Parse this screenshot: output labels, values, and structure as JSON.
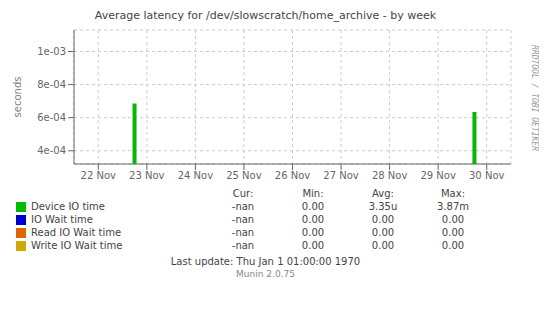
{
  "chart_data": {
    "type": "bar",
    "title": "Average latency for /dev/slowscratch/home_archive - by week",
    "ylabel": "seconds",
    "categories": [
      "22 Nov",
      "23 Nov",
      "24 Nov",
      "25 Nov",
      "26 Nov",
      "27 Nov",
      "28 Nov",
      "29 Nov",
      "30 Nov"
    ],
    "series": [
      {
        "name": "Device IO time",
        "color": "#00bb00",
        "values": [
          null,
          0.000685,
          null,
          null,
          null,
          null,
          null,
          null,
          0.000635
        ],
        "stats": [
          "-nan",
          "0.00",
          "3.35u",
          "3.87m"
        ]
      },
      {
        "name": "IO Wait time",
        "color": "#0000cc",
        "values": [
          null,
          null,
          null,
          null,
          null,
          null,
          null,
          null,
          null
        ],
        "stats": [
          "-nan",
          "0.00",
          "0.00",
          "0.00"
        ]
      },
      {
        "name": "Read IO Wait time",
        "color": "#dd6600",
        "values": [
          null,
          null,
          null,
          null,
          null,
          null,
          null,
          null,
          null
        ],
        "stats": [
          "-nan",
          "0.00",
          "0.00",
          "0.00"
        ]
      },
      {
        "name": "Write IO Wait time",
        "color": "#ccaa00",
        "values": [
          null,
          null,
          null,
          null,
          null,
          null,
          null,
          null,
          null
        ],
        "stats": [
          "-nan",
          "0.00",
          "0.00",
          "0.00"
        ]
      }
    ],
    "stats_headers": [
      "Cur:",
      "Min:",
      "Avg:",
      "Max:"
    ],
    "ylim": [
      0.00032,
      0.00113
    ],
    "yticks": [
      {
        "value": 0.001,
        "label": "1e-03"
      },
      {
        "value": 0.0008,
        "label": "8e-04"
      },
      {
        "value": 0.0006,
        "label": "6e-04"
      },
      {
        "value": 0.0004,
        "label": "4e-04"
      }
    ],
    "grid": true,
    "annotations": [
      "Last update: Thu Jan  1 01:00:00 1970",
      "Munin 2.0.75",
      "RRDTOOL / TOBI OETIKER"
    ]
  }
}
